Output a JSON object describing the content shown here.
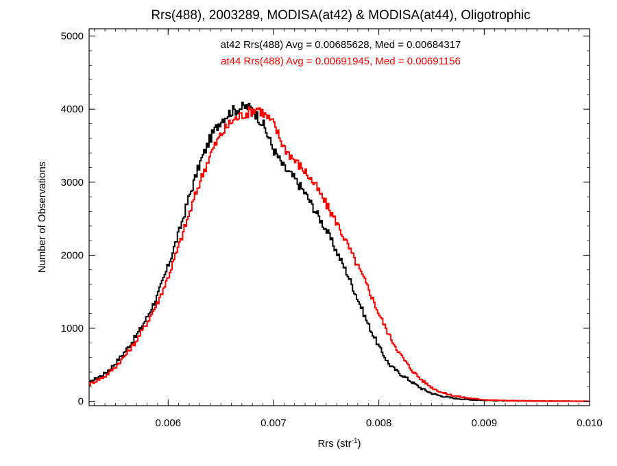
{
  "chart_data": {
    "type": "line",
    "title": "Rrs(488), 2003289, MODISA(at42) & MODISA(at44), Oligotrophic",
    "xlabel_main": "Rrs (str",
    "xlabel_sup": "-1",
    "xlabel_close": ")",
    "ylabel": "Number of Observations",
    "xlim": [
      0.00525,
      0.01
    ],
    "ylim": [
      -60,
      5100
    ],
    "x_ticks": [
      0.006,
      0.007,
      0.008,
      0.009,
      0.01
    ],
    "x_tick_labels": [
      "0.006",
      "0.007",
      "0.008",
      "0.009",
      "0.010"
    ],
    "y_ticks": [
      0,
      1000,
      2000,
      3000,
      4000,
      5000
    ],
    "y_tick_labels": [
      "0",
      "1000",
      "2000",
      "3000",
      "4000",
      "5000"
    ],
    "grid": false,
    "legend": "top-center",
    "annotations": [
      {
        "text": "at42 Rrs(488) Avg = 0.00685628, Med = 0.00684317",
        "color": "#000000"
      },
      {
        "text": "at44 Rrs(488) Avg = 0.00691945, Med = 0.00691156",
        "color": "#ff0000"
      }
    ],
    "series": [
      {
        "name": "at42",
        "color": "#000000",
        "x": [
          0.00525,
          0.0053,
          0.0054,
          0.0055,
          0.0056,
          0.0057,
          0.0058,
          0.0059,
          0.006,
          0.0061,
          0.0062,
          0.0063,
          0.0064,
          0.0065,
          0.0066,
          0.0067,
          0.00675,
          0.0068,
          0.0069,
          0.007,
          0.0071,
          0.0072,
          0.0073,
          0.0074,
          0.0075,
          0.0076,
          0.0077,
          0.0078,
          0.0079,
          0.008,
          0.0081,
          0.0082,
          0.0083,
          0.0084,
          0.0085,
          0.0086,
          0.0087,
          0.0088,
          0.0089,
          0.009,
          0.0091,
          0.0092,
          0.0094,
          0.0096,
          0.0098,
          0.01
        ],
        "y": [
          250,
          300,
          380,
          520,
          700,
          900,
          1150,
          1450,
          1850,
          2300,
          2800,
          3250,
          3600,
          3850,
          3970,
          4020,
          4030,
          4000,
          3800,
          3450,
          3200,
          3050,
          2850,
          2600,
          2350,
          2050,
          1750,
          1400,
          1050,
          750,
          500,
          380,
          280,
          180,
          110,
          70,
          45,
          30,
          20,
          15,
          10,
          8,
          5,
          3,
          2,
          1
        ]
      },
      {
        "name": "at44",
        "color": "#ff0000",
        "x": [
          0.00525,
          0.0053,
          0.0054,
          0.0055,
          0.0056,
          0.0057,
          0.0058,
          0.0059,
          0.006,
          0.0061,
          0.0062,
          0.0063,
          0.0064,
          0.0065,
          0.0066,
          0.0067,
          0.0068,
          0.00685,
          0.0069,
          0.007,
          0.0071,
          0.0072,
          0.0073,
          0.0074,
          0.0075,
          0.0076,
          0.0077,
          0.0078,
          0.0079,
          0.008,
          0.0081,
          0.0082,
          0.0083,
          0.0084,
          0.0085,
          0.0086,
          0.0087,
          0.0088,
          0.0089,
          0.009,
          0.0091,
          0.0092,
          0.0094,
          0.0096,
          0.0098,
          0.01
        ],
        "y": [
          230,
          270,
          340,
          470,
          640,
          830,
          1080,
          1350,
          1700,
          2120,
          2560,
          3000,
          3380,
          3650,
          3830,
          3920,
          3980,
          4020,
          3950,
          3800,
          3480,
          3300,
          3150,
          2950,
          2700,
          2450,
          2150,
          1850,
          1550,
          1200,
          900,
          650,
          450,
          300,
          190,
          120,
          80,
          55,
          35,
          22,
          15,
          10,
          6,
          4,
          2,
          1
        ]
      }
    ]
  }
}
